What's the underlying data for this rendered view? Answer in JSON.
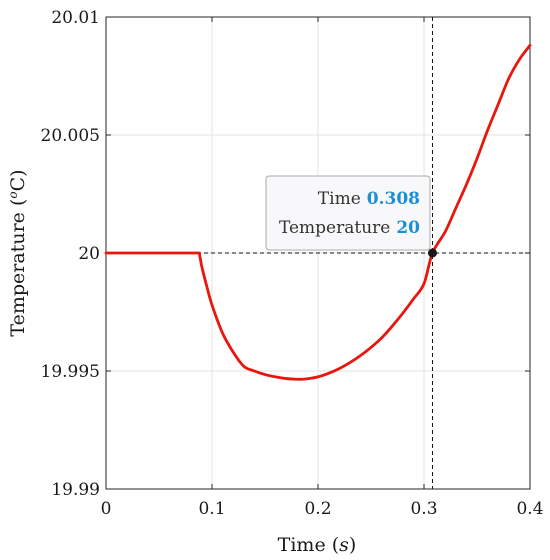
{
  "chart_data": {
    "type": "line",
    "xlabel": {
      "text": "Time",
      "unit": "s"
    },
    "ylabel": {
      "text": "Temperature",
      "unit_prefix": "o",
      "unit": "C"
    },
    "xlim": [
      0,
      0.4
    ],
    "ylim": [
      19.99,
      20.01
    ],
    "grid": true,
    "xticks": [
      0,
      0.1,
      0.2,
      0.3,
      0.4
    ],
    "xtick_labels": [
      "0",
      "0.1",
      "0.2",
      "0.3",
      "0.4"
    ],
    "yticks": [
      19.99,
      19.995,
      20,
      20.005,
      20.01
    ],
    "ytick_labels": [
      "19.99",
      "19.995",
      "20",
      "20.005",
      "20.01"
    ],
    "series": [
      {
        "color": "#e8160c",
        "x": [
          0,
          0.05,
          0.088,
          0.09,
          0.095,
          0.1,
          0.11,
          0.12,
          0.13,
          0.14,
          0.15,
          0.16,
          0.17,
          0.18,
          0.185,
          0.19,
          0.2,
          0.21,
          0.22,
          0.23,
          0.24,
          0.25,
          0.26,
          0.27,
          0.28,
          0.29,
          0.3,
          0.308,
          0.32,
          0.33,
          0.34,
          0.35,
          0.36,
          0.37,
          0.38,
          0.39,
          0.4
        ],
        "y": [
          20,
          20,
          20,
          19.9995,
          19.9986,
          19.9978,
          19.9966,
          19.9958,
          19.9952,
          19.995,
          19.99485,
          19.99475,
          19.99468,
          19.99465,
          19.99465,
          19.99467,
          19.99475,
          19.9949,
          19.9951,
          19.99535,
          19.99565,
          19.996,
          19.9964,
          19.9969,
          19.99745,
          19.99805,
          19.9987,
          20.0,
          20.0009,
          20.0019,
          20.0029,
          20.004,
          20.0052,
          20.0063,
          20.0074,
          20.0082,
          20.0088
        ]
      }
    ],
    "cursor": {
      "x": 0.308,
      "y": 20,
      "x_label": "Time",
      "x_value": "0.308",
      "y_label": "Temperature",
      "y_value": "20"
    }
  }
}
